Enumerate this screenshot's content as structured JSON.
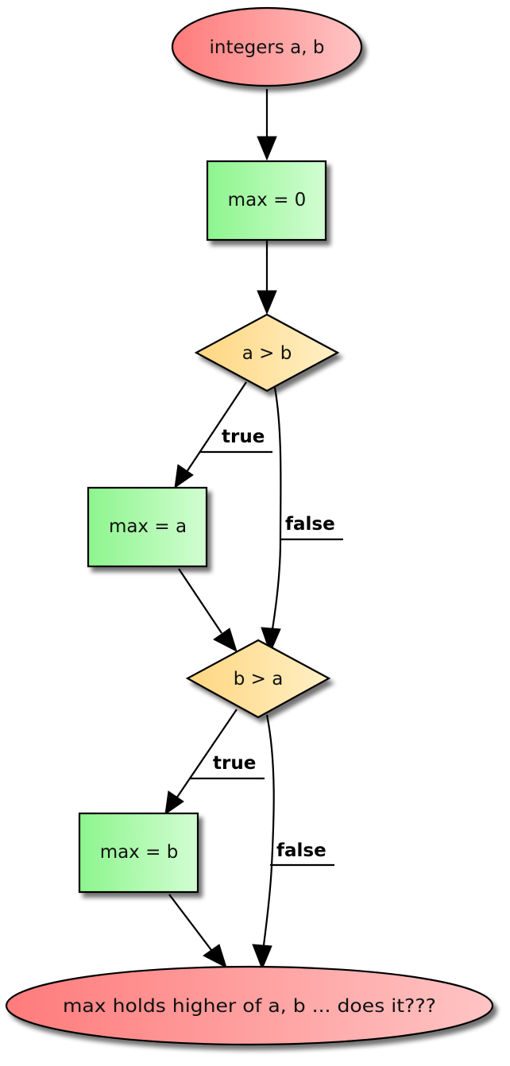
{
  "diagram": {
    "type": "flowchart",
    "nodes": {
      "start": {
        "label": "integers a, b",
        "shape": "ellipse"
      },
      "init": {
        "label": "max = 0",
        "shape": "rectangle"
      },
      "cond1": {
        "label": "a > b",
        "shape": "diamond"
      },
      "assign_a": {
        "label": "max = a",
        "shape": "rectangle"
      },
      "cond2": {
        "label": "b > a",
        "shape": "diamond"
      },
      "assign_b": {
        "label": "max = b",
        "shape": "rectangle"
      },
      "end": {
        "label": "max holds higher of a, b ... does it???",
        "shape": "ellipse"
      }
    },
    "edges": {
      "cond1_true": {
        "label": "true",
        "from": "a > b",
        "to": "max = a"
      },
      "cond1_false": {
        "label": "false",
        "from": "a > b",
        "to": "b > a"
      },
      "cond2_true": {
        "label": "true",
        "from": "b > a",
        "to": "max = b"
      },
      "cond2_false": {
        "label": "false",
        "from": "b > a",
        "to": "max holds higher of a, b ... does it???"
      }
    },
    "colors": {
      "terminal_start": "#ff7b7b",
      "terminal_end": "#ffc4c4",
      "process_start": "#8df58d",
      "process_end": "#d2fdd2",
      "decision_start": "#ffd680",
      "decision_end": "#fff0c6"
    }
  }
}
